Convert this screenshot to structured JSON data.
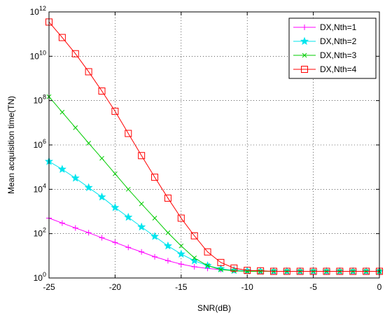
{
  "chart_data": {
    "type": "line",
    "title": "",
    "xlabel": "SNR(dB)",
    "ylabel": "Mean acquisition time(TN)",
    "xlim": [
      -25,
      0
    ],
    "ylim": [
      1,
      1000000000000
    ],
    "yscale": "log",
    "grid": true,
    "legend_position": "top-right",
    "x_ticks": [
      -25,
      -20,
      -15,
      -10,
      -5,
      0
    ],
    "x_tick_labels": [
      "-25",
      "-20",
      "-15",
      "-10",
      "-5",
      "0"
    ],
    "y_ticks": [
      1,
      100,
      10000,
      1000000,
      100000000,
      10000000000,
      1000000000000
    ],
    "y_tick_labels": [
      {
        "base": "10",
        "exp": "0"
      },
      {
        "base": "10",
        "exp": "2"
      },
      {
        "base": "10",
        "exp": "4"
      },
      {
        "base": "10",
        "exp": "6"
      },
      {
        "base": "10",
        "exp": "8"
      },
      {
        "base": "10",
        "exp": "10"
      },
      {
        "base": "10",
        "exp": "12"
      }
    ],
    "x": [
      -25,
      -24,
      -23,
      -22,
      -21,
      -20,
      -19,
      -18,
      -17,
      -16,
      -15,
      -14,
      -13,
      -12,
      -11,
      -10,
      -9,
      -8,
      -7,
      -6,
      -5,
      -4,
      -3,
      -2,
      -1,
      0
    ],
    "series": [
      {
        "name": "DX,Nth=1",
        "color": "#ff00ff",
        "marker": "plus",
        "values": [
          500,
          300,
          180,
          110,
          65,
          40,
          24,
          15,
          9,
          6,
          4.2,
          3.2,
          2.7,
          2.4,
          2.2,
          2.1,
          2,
          2,
          2,
          2,
          2,
          2,
          2,
          2,
          2,
          2
        ]
      },
      {
        "name": "DX,Nth=2",
        "color": "#00e5ee",
        "marker": "star",
        "values": [
          180000,
          80000,
          32000,
          12000,
          4500,
          1500,
          550,
          200,
          75,
          28,
          12,
          6,
          3.6,
          2.6,
          2.2,
          2.1,
          2,
          2,
          2,
          2,
          2,
          2,
          2,
          2,
          2,
          2
        ]
      },
      {
        "name": "DX,Nth=3",
        "color": "#00cc00",
        "marker": "x",
        "values": [
          150000000,
          30000000,
          6000000,
          1200000,
          250000,
          50000,
          10000,
          2200,
          500,
          110,
          28,
          8,
          3.6,
          2.4,
          2.1,
          2,
          2,
          2,
          2,
          2,
          2,
          2,
          2,
          2,
          2,
          2
        ]
      },
      {
        "name": "DX,Nth=4",
        "color": "#ff0000",
        "marker": "square",
        "values": [
          350000000000,
          70000000000,
          13000000000,
          2000000000,
          270000000,
          33000000,
          3300000,
          330000,
          35000,
          4000,
          500,
          80,
          15,
          5,
          2.8,
          2.2,
          2.1,
          2,
          2,
          2,
          2,
          2,
          2,
          2,
          2,
          2
        ]
      }
    ]
  }
}
